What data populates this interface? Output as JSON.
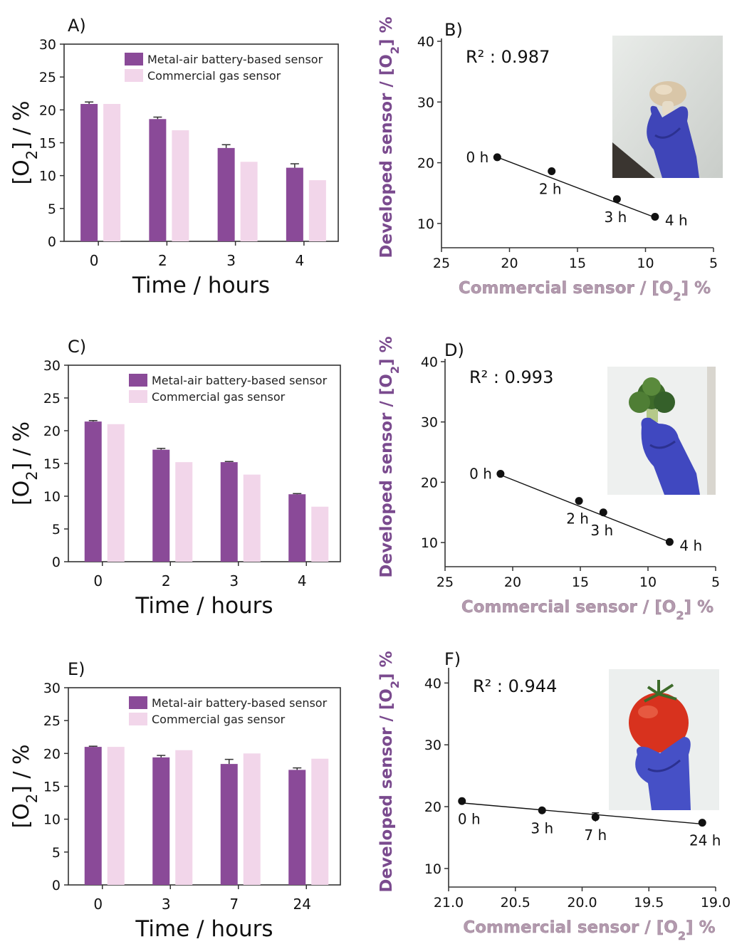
{
  "colors": {
    "developed": "#8A4A98",
    "commercial": "#F2D6EA",
    "ylabel_purple": "#7A4A8E",
    "xlabel_pink": "#B39AAE",
    "axis": "#333333"
  },
  "chart_data": [
    {
      "panel": "A)",
      "type": "bar",
      "categories": [
        "0",
        "2",
        "3",
        "4"
      ],
      "xlabel": "Time / hours",
      "ylabel": "[O2] / %",
      "ylim": [
        0,
        30
      ],
      "yticks": [
        0,
        5,
        10,
        15,
        20,
        25,
        30
      ],
      "legend": "top-right",
      "series": [
        {
          "name": "Metal-air battery-based sensor",
          "values": [
            20.9,
            18.6,
            14.2,
            11.2
          ],
          "errors": [
            0.3,
            0.3,
            0.5,
            0.6
          ]
        },
        {
          "name": "Commercial gas sensor",
          "values": [
            20.9,
            16.9,
            12.1,
            9.3
          ]
        }
      ]
    },
    {
      "panel": "B)",
      "type": "scatter",
      "xlabel": "Commercial sensor / [O2] %",
      "ylabel": "Developed sensor / [O2] %",
      "xlim": [
        25,
        5
      ],
      "ylim": [
        6,
        40
      ],
      "xticks": [
        25,
        20,
        15,
        10,
        5
      ],
      "yticks": [
        10,
        20,
        30,
        40
      ],
      "annotation": "R² : 0.987",
      "points": [
        {
          "x": 20.9,
          "y": 20.9,
          "label": "0 h"
        },
        {
          "x": 16.9,
          "y": 18.6,
          "label": "2 h"
        },
        {
          "x": 12.1,
          "y": 14.0,
          "label": "3 h"
        },
        {
          "x": 9.3,
          "y": 11.1,
          "label": "4 h"
        }
      ],
      "fit": [
        [
          21.0,
          21.0
        ],
        [
          9.3,
          11.0
        ]
      ],
      "inset_photo": "mushroom held in blue-gloved hand"
    },
    {
      "panel": "C)",
      "type": "bar",
      "categories": [
        "0",
        "2",
        "3",
        "4"
      ],
      "xlabel": "Time / hours",
      "ylabel": "[O2] / %",
      "ylim": [
        0,
        30
      ],
      "yticks": [
        0,
        5,
        10,
        15,
        20,
        25,
        30
      ],
      "legend": "top-right",
      "series": [
        {
          "name": "Metal-air battery-based sensor",
          "values": [
            21.4,
            17.1,
            15.2,
            10.3
          ],
          "errors": [
            0.15,
            0.2,
            0.1,
            0.1
          ]
        },
        {
          "name": "Commercial gas sensor",
          "values": [
            21.0,
            15.2,
            13.3,
            8.4
          ]
        }
      ]
    },
    {
      "panel": "D)",
      "type": "scatter",
      "xlabel": "Commercial sensor / [O2] %",
      "ylabel": "Developed sensor / [O2] %",
      "xlim": [
        25,
        5
      ],
      "ylim": [
        6,
        40
      ],
      "xticks": [
        25,
        20,
        15,
        10,
        5
      ],
      "yticks": [
        10,
        20,
        30,
        40
      ],
      "annotation": "R² : 0.993",
      "points": [
        {
          "x": 20.9,
          "y": 21.4,
          "label": "0 h"
        },
        {
          "x": 15.1,
          "y": 16.9,
          "label": "2 h"
        },
        {
          "x": 13.3,
          "y": 15.0,
          "label": "3 h"
        },
        {
          "x": 8.4,
          "y": 10.1,
          "label": "4 h"
        }
      ],
      "fit": [
        [
          21.0,
          21.3
        ],
        [
          8.4,
          10.1
        ]
      ],
      "inset_photo": "broccoli held in blue-gloved hand"
    },
    {
      "panel": "E)",
      "type": "bar",
      "categories": [
        "0",
        "3",
        "7",
        "24"
      ],
      "xlabel": "Time / hours",
      "ylabel": "[O2] / %",
      "ylim": [
        0,
        30
      ],
      "yticks": [
        0,
        5,
        10,
        15,
        20,
        25,
        30
      ],
      "legend": "top-right",
      "series": [
        {
          "name": "Metal-air battery-based sensor",
          "values": [
            21.0,
            19.4,
            18.4,
            17.5
          ],
          "errors": [
            0.1,
            0.3,
            0.7,
            0.3
          ]
        },
        {
          "name": "Commercial gas sensor",
          "values": [
            21.0,
            20.5,
            20.0,
            19.2
          ]
        }
      ]
    },
    {
      "panel": "F)",
      "type": "scatter",
      "xlabel": "Commercial sensor / [O2] %",
      "ylabel": "Developed sensor / [O2] %",
      "xlim": [
        21.0,
        19.0
      ],
      "ylim": [
        7,
        42
      ],
      "xticks": [
        "21.0",
        "20.5",
        "20.0",
        "19.5",
        "19.0"
      ],
      "yticks": [
        10,
        20,
        30,
        40
      ],
      "annotation": "R² : 0.944",
      "points": [
        {
          "x": 20.9,
          "y": 20.9,
          "label": "0 h",
          "err": 0
        },
        {
          "x": 20.3,
          "y": 19.4,
          "label": "3 h",
          "err": 0
        },
        {
          "x": 19.9,
          "y": 18.3,
          "label": "7 h",
          "err": 0.7
        },
        {
          "x": 19.1,
          "y": 17.4,
          "label": "24 h",
          "err": 0
        }
      ],
      "fit": [
        [
          20.9,
          20.6
        ],
        [
          19.1,
          17.2
        ]
      ],
      "inset_photo": "tomato held in blue-gloved hand"
    }
  ]
}
